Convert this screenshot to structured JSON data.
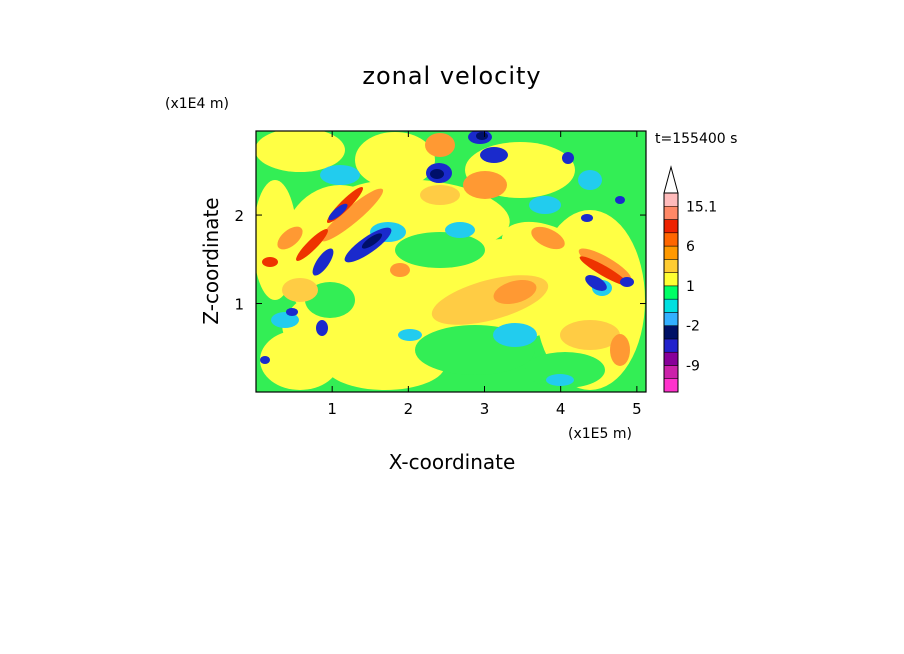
{
  "chart_data": {
    "type": "heatmap",
    "title": "zonal velocity",
    "xlabel": "X-coordinate",
    "ylabel": "Z-coordinate",
    "x_unit": "(x1E5 m)",
    "y_unit": "(x1E4 m)",
    "time_label": "t=155400 s",
    "xlim": [
      0,
      5.12
    ],
    "ylim": [
      0,
      2.95
    ],
    "x_ticks": [
      1,
      2,
      3,
      4,
      5
    ],
    "y_ticks": [
      1,
      2
    ],
    "x_tick_labels": [
      "1",
      "2",
      "3",
      "4",
      "5"
    ],
    "y_tick_labels": [
      "1",
      "2"
    ],
    "colorbar": {
      "levels": [
        -15,
        -12,
        -9,
        -6,
        -3,
        -2,
        -1,
        0,
        1,
        2,
        3,
        6,
        9,
        12,
        15.1
      ],
      "labels": [
        "15.1",
        "6",
        "1",
        "-2",
        "-9"
      ],
      "colors": [
        "#ff33cc",
        "#cc22aa",
        "#880099",
        "#2222cc",
        "#001166",
        "#33b0ff",
        "#00e0e0",
        "#00ff66",
        "#ffff33",
        "#ffcc33",
        "#ff9900",
        "#ff6600",
        "#ee2200",
        "#ff8866",
        "#ffbbbb"
      ]
    },
    "field_colors": {
      "green": "#33ee55",
      "yellow": "#ffff44",
      "light_orange": "#ffcc44",
      "orange": "#ff9933",
      "cyan": "#22ccee",
      "blue": "#1a2acc",
      "navy": "#00106a",
      "red": "#ee3300"
    }
  }
}
